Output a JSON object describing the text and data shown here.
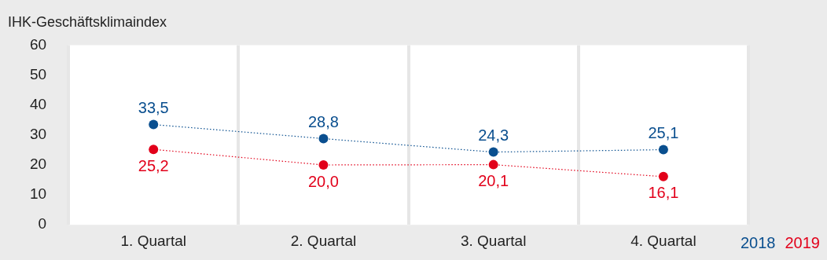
{
  "chart_data": {
    "type": "line",
    "ylabel": "IHK-Geschäftsklimaindex",
    "categories": [
      "1. Quartal",
      "2. Quartal",
      "3. Quartal",
      "4. Quartal"
    ],
    "series": [
      {
        "name": "2018",
        "color": "#0a4f8f",
        "values": [
          33.5,
          28.8,
          24.3,
          25.1
        ],
        "value_labels": [
          "33,5",
          "28,8",
          "24,3",
          "25,1"
        ]
      },
      {
        "name": "2019",
        "color": "#e2001a",
        "values": [
          25.2,
          20.0,
          20.1,
          16.1
        ],
        "value_labels": [
          "25,2",
          "20,0",
          "20,1",
          "16,1"
        ]
      }
    ],
    "ylim": [
      0,
      60
    ],
    "yticks": [
      0,
      10,
      20,
      30,
      40,
      50,
      60
    ],
    "grid": "x",
    "legend": "bottom right",
    "marker": "circle",
    "line_style": "dotted"
  }
}
